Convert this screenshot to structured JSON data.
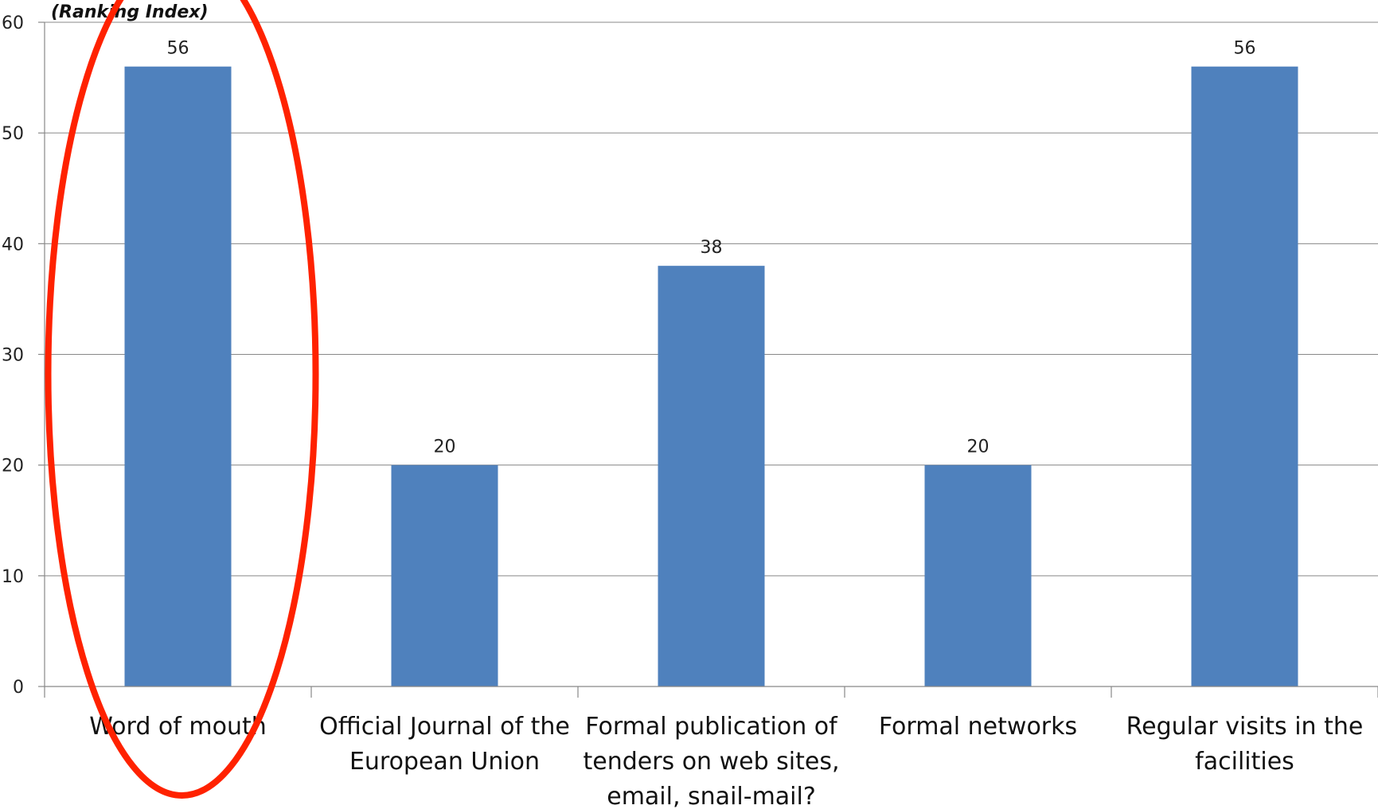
{
  "chart_data": {
    "type": "bar",
    "ylabel": "(Ranking Index)",
    "categories": [
      [
        "Word of mouth"
      ],
      [
        "Official Journal  of the",
        "European Union"
      ],
      [
        "Formal publication of",
        "tenders on web sites,",
        "email, snail-mail?"
      ],
      [
        "Formal networks"
      ],
      [
        "Regular visits in the",
        "facilities"
      ]
    ],
    "values": [
      56,
      20,
      38,
      20,
      56
    ],
    "data_labels": [
      "56",
      "20",
      "38",
      "20",
      "56"
    ],
    "ylim": [
      0,
      60
    ],
    "yticks": [
      0,
      10,
      20,
      30,
      40,
      50,
      60
    ],
    "grid": true,
    "legend": "none",
    "colors": {
      "bar": "#4f81bd",
      "highlight": "#ff2200"
    },
    "annotations": [
      {
        "type": "ellipse-highlight",
        "target_category_index": 0
      }
    ]
  }
}
